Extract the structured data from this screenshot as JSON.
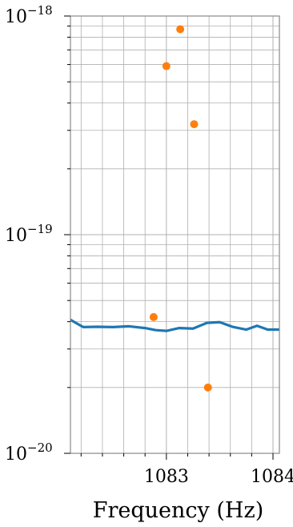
{
  "chart_data": {
    "type": "line",
    "title": "",
    "xlabel": "Frequency (Hz)",
    "ylabel": "",
    "xlim": [
      1082.1,
      1084.06
    ],
    "ylim": [
      1e-20,
      1e-18
    ],
    "yscale": "log",
    "grid": true,
    "x_major_ticks": [
      1083,
      1084
    ],
    "x_tick_labels": [
      "1083",
      "1084"
    ],
    "y_major_ticks": [
      1e-20,
      1e-19,
      1e-18
    ],
    "y_tick_labels": [
      {
        "base": "10",
        "exp": "−20"
      },
      {
        "base": "10",
        "exp": "−19"
      },
      {
        "base": "10",
        "exp": "−18"
      }
    ],
    "series": [
      {
        "type": "line",
        "color": "#1f77b4",
        "x": [
          1082.1,
          1082.15,
          1082.22,
          1082.35,
          1082.5,
          1082.65,
          1082.8,
          1082.9,
          1083.0,
          1083.12,
          1083.25,
          1083.38,
          1083.5,
          1083.62,
          1083.75,
          1083.85,
          1083.95,
          1084.06
        ],
        "y": [
          4.08e-20,
          3.95e-20,
          3.78e-20,
          3.79e-20,
          3.78e-20,
          3.81e-20,
          3.74e-20,
          3.66e-20,
          3.63e-20,
          3.74e-20,
          3.72e-20,
          3.95e-20,
          3.98e-20,
          3.79e-20,
          3.68e-20,
          3.83e-20,
          3.68e-20,
          3.68e-20
        ]
      },
      {
        "type": "scatter",
        "color": "#ff7f0e",
        "x": [
          1082.88,
          1083.0,
          1083.13,
          1083.26,
          1083.39
        ],
        "y": [
          4.2e-20,
          5.9e-19,
          8.7e-19,
          3.2e-19,
          2e-20
        ]
      }
    ]
  }
}
